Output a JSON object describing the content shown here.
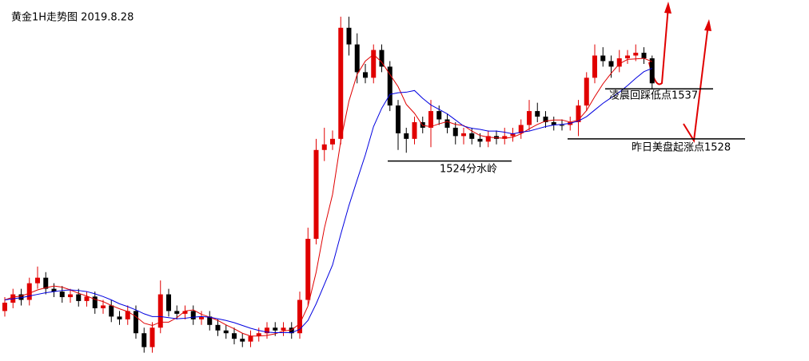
{
  "chart_data": {
    "type": "candlestick",
    "title": "黄金1H走势图 2019.8.28",
    "ylim": [
      1488,
      1553
    ],
    "up_color": "#e00000",
    "down_color": "#000000",
    "open": [
      1497,
      1498.5,
      1500,
      1499,
      1502,
      1503,
      1501,
      1500.5,
      1499.5,
      1500,
      1498.8,
      1499.6,
      1497.5,
      1498,
      1496,
      1495.5,
      1497,
      1493,
      1490.5,
      1494,
      1500,
      1497,
      1496.5,
      1497,
      1495.5,
      1496,
      1494.5,
      1493.5,
      1493,
      1492,
      1491.5,
      1492.5,
      1493,
      1494,
      1493.5,
      1494,
      1493,
      1499,
      1510,
      1526,
      1527,
      1528,
      1548,
      1545,
      1540,
      1539,
      1544,
      1541,
      1534,
      1529,
      1528,
      1531,
      1530,
      1533,
      1531.5,
      1530,
      1528.5,
      1529,
      1528,
      1527.5,
      1528.5,
      1528,
      1528.5,
      1529,
      1530.5,
      1533,
      1532,
      1531,
      1530.5,
      1530.5,
      1531,
      1534,
      1539,
      1543,
      1542,
      1541,
      1542.5,
      1543,
      1543.5,
      1542.5
    ],
    "high": [
      1499.5,
      1501,
      1501,
      1503,
      1505,
      1504,
      1502,
      1501.5,
      1501,
      1501,
      1500.5,
      1500.5,
      1499,
      1499,
      1497,
      1498,
      1498,
      1494,
      1495,
      1502.5,
      1501,
      1498,
      1498,
      1498,
      1497,
      1497,
      1495.5,
      1494.5,
      1494,
      1493,
      1493.5,
      1494,
      1495,
      1495,
      1495,
      1495,
      1500.5,
      1512,
      1528,
      1530,
      1529.5,
      1550,
      1550,
      1547,
      1541.5,
      1545,
      1545,
      1542,
      1535,
      1530,
      1532,
      1532,
      1535,
      1534,
      1532.5,
      1531,
      1530,
      1530,
      1529,
      1529.5,
      1529.5,
      1530,
      1530,
      1531.5,
      1535,
      1534.5,
      1533,
      1532,
      1531.5,
      1532,
      1535,
      1540,
      1545,
      1544.5,
      1543,
      1544,
      1544,
      1545,
      1544.5,
      1543
    ],
    "low": [
      1496,
      1497.5,
      1498,
      1498,
      1501,
      1500,
      1499.5,
      1498.5,
      1498.5,
      1497.8,
      1497.8,
      1496.5,
      1496.5,
      1495,
      1494.5,
      1494.5,
      1492,
      1489.5,
      1489.5,
      1493,
      1496,
      1495.5,
      1495.5,
      1494.5,
      1494.5,
      1493.5,
      1492.5,
      1492,
      1491,
      1490.5,
      1490.5,
      1491.5,
      1492,
      1492.5,
      1492.5,
      1492,
      1492,
      1498,
      1509,
      1524,
      1526,
      1527,
      1543,
      1538,
      1538,
      1538,
      1540,
      1533,
      1526,
      1525.5,
      1527,
      1529,
      1526.5,
      1530.5,
      1529,
      1527,
      1527,
      1527,
      1526.5,
      1526.5,
      1527,
      1527,
      1527.5,
      1528,
      1529.5,
      1531,
      1530,
      1529.5,
      1529.5,
      1529.5,
      1528.5,
      1533,
      1538,
      1541,
      1539,
      1540,
      1541.5,
      1542,
      1541.5,
      1537
    ],
    "close": [
      1498.5,
      1500,
      1499,
      1502,
      1503,
      1501,
      1500.5,
      1499.5,
      1500,
      1498.8,
      1499.6,
      1497.5,
      1498,
      1496,
      1495.5,
      1497,
      1493,
      1490.5,
      1494,
      1500,
      1497,
      1496.5,
      1497,
      1495.5,
      1496,
      1494.5,
      1493.5,
      1493,
      1492,
      1491.5,
      1492.5,
      1493,
      1494,
      1493.5,
      1494,
      1493,
      1499,
      1510,
      1526,
      1527,
      1528,
      1548,
      1545,
      1540,
      1539,
      1544,
      1541,
      1534,
      1529,
      1528,
      1531,
      1530,
      1533,
      1531.5,
      1530,
      1528.5,
      1529,
      1528,
      1527.5,
      1528.5,
      1528,
      1528.5,
      1529,
      1530.5,
      1533,
      1532,
      1531,
      1530.5,
      1530.5,
      1531,
      1534,
      1539,
      1543,
      1542,
      1541,
      1542.5,
      1543,
      1543.5,
      1542.5,
      1538
    ],
    "lines": [
      {
        "color": "#e00000",
        "values": [
          1499,
          1499.5,
          1499.7,
          1500.2,
          1500.8,
          1501.2,
          1501.5,
          1501.3,
          1500.8,
          1500.2,
          1499.7,
          1499.1,
          1498.7,
          1498,
          1497.4,
          1496.9,
          1496,
          1494.8,
          1494.4,
          1495,
          1495,
          1495.8,
          1497,
          1497.2,
          1496.4,
          1495.9,
          1495.3,
          1494.5,
          1493.8,
          1493,
          1492.5,
          1492.5,
          1492.6,
          1492.9,
          1493.4,
          1493.6,
          1494.7,
          1497.9,
          1504,
          1511.9,
          1518,
          1527.6,
          1534.8,
          1539.6,
          1542,
          1543.2,
          1541.8,
          1539.6,
          1537.4,
          1534.2,
          1532.6,
          1530.4,
          1530.2,
          1530.7,
          1531.1,
          1530.6,
          1530.4,
          1529.4,
          1528.6,
          1528.3,
          1528.2,
          1528.1,
          1528.3,
          1528.9,
          1529.8,
          1530.6,
          1531.2,
          1531.4,
          1531.4,
          1531,
          1531.4,
          1533.1,
          1535.6,
          1537.9,
          1539.8,
          1541.5,
          1542.3,
          1542.4,
          1542.5,
          1541.9
        ]
      },
      {
        "color": "#0000e0",
        "values": [
          1499,
          1499.2,
          1499.4,
          1499.7,
          1500,
          1500.3,
          1500.5,
          1500.7,
          1500.8,
          1500.7,
          1500.5,
          1500.1,
          1499.6,
          1499,
          1498.3,
          1497.8,
          1497.2,
          1496.5,
          1496,
          1496,
          1495.8,
          1495.6,
          1495.7,
          1495.9,
          1496,
          1495.9,
          1495.6,
          1495.3,
          1494.9,
          1494.4,
          1493.9,
          1493.5,
          1493.2,
          1493.1,
          1493.1,
          1493.1,
          1493.7,
          1495.3,
          1498.3,
          1501.8,
          1505.3,
          1510.8,
          1516,
          1520.6,
          1525.1,
          1530.2,
          1533.5,
          1536,
          1536.3,
          1536.4,
          1536.7,
          1535.3,
          1534.1,
          1533.3,
          1532.5,
          1531.4,
          1530.3,
          1529.9,
          1529.7,
          1529.4,
          1529.4,
          1529.2,
          1528.9,
          1529.2,
          1529.4,
          1529.8,
          1530.2,
          1530.5,
          1530.6,
          1530.8,
          1531.2,
          1532,
          1533.2,
          1534.4,
          1535.4,
          1536.4,
          1537.6,
          1538.9,
          1540.1,
          1540.7
        ]
      }
    ],
    "annotations": [
      {
        "text": "1524分水岭",
        "value": 1524
      },
      {
        "text": "凌晨回踩低点1537",
        "value": 1537
      },
      {
        "text": "昨日美盘起涨点1528",
        "value": 1528
      }
    ]
  }
}
